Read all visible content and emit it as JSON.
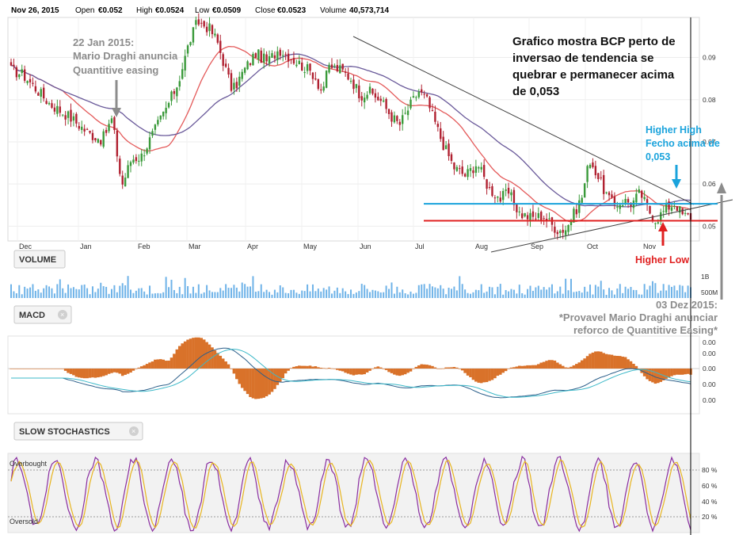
{
  "header": {
    "date": "Nov 26, 2015",
    "open_label": "Open",
    "open_value": "€0.052",
    "high_label": "High",
    "high_value": "€0.0524",
    "low_label": "Low",
    "low_value": "€0.0509",
    "close_label": "Close",
    "close_value": "€0.0523",
    "volume_label": "Volume",
    "volume_value": "40,573,714"
  },
  "panels": {
    "volume_title": "VOLUME",
    "macd_title": "MACD",
    "stoch_title": "SLOW STOCHASTICS",
    "close_icon": "close-circle-icon"
  },
  "annotations": {
    "draghi_jan": [
      "22 Jan 2015:",
      "Mario Draghi anuncia",
      "Quantitive easing"
    ],
    "main_note": [
      "Grafico mostra BCP perto de",
      "inversao de tendencia se",
      "quebrar e permanecer acima",
      "de 0,053"
    ],
    "higher_high": [
      "Higher High",
      "Fecho acima de",
      "0,053"
    ],
    "higher_low": "Higher Low",
    "dec_note": [
      "03 Dez 2015:",
      "*Provavel Mario Draghi anunciar",
      "reforco de Quantitive Easing*"
    ],
    "colors": {
      "gray": "#8c8c8c",
      "black": "#111111",
      "blue": "#1aa3dc",
      "red": "#e02020"
    }
  },
  "chart_data": {
    "type": "candlestick",
    "x_months": [
      "Dec",
      "Jan",
      "Feb",
      "Mar",
      "Apr",
      "May",
      "Jun",
      "Jul",
      "Aug",
      "Sep",
      "Oct",
      "Nov"
    ],
    "price_ticks": [
      "0.09",
      "0.08",
      "0.07",
      "0.06",
      "0.05"
    ],
    "price_ylim": [
      0.0465,
      0.0995
    ],
    "close_anchors": [
      [
        0,
        0.087
      ],
      [
        6,
        0.086
      ],
      [
        12,
        0.083
      ],
      [
        20,
        0.079
      ],
      [
        30,
        0.076
      ],
      [
        40,
        0.072
      ],
      [
        47,
        0.0705
      ],
      [
        52,
        0.0755
      ],
      [
        57,
        0.0595
      ],
      [
        62,
        0.066
      ],
      [
        67,
        0.0665
      ],
      [
        72,
        0.071
      ],
      [
        80,
        0.078
      ],
      [
        86,
        0.084
      ],
      [
        92,
        0.094
      ],
      [
        96,
        0.0985
      ],
      [
        102,
        0.097
      ],
      [
        106,
        0.094
      ],
      [
        110,
        0.088
      ],
      [
        114,
        0.082
      ],
      [
        120,
        0.087
      ],
      [
        126,
        0.091
      ],
      [
        132,
        0.089
      ],
      [
        138,
        0.092
      ],
      [
        144,
        0.09
      ],
      [
        150,
        0.088
      ],
      [
        156,
        0.086
      ],
      [
        160,
        0.082
      ],
      [
        164,
        0.088
      ],
      [
        170,
        0.087
      ],
      [
        175,
        0.085
      ],
      [
        180,
        0.081
      ],
      [
        184,
        0.082
      ],
      [
        190,
        0.08
      ],
      [
        196,
        0.076
      ],
      [
        200,
        0.074
      ],
      [
        206,
        0.079
      ],
      [
        210,
        0.082
      ],
      [
        214,
        0.08
      ],
      [
        218,
        0.075
      ],
      [
        222,
        0.07
      ],
      [
        228,
        0.064
      ],
      [
        234,
        0.062
      ],
      [
        240,
        0.065
      ],
      [
        246,
        0.059
      ],
      [
        252,
        0.0565
      ],
      [
        256,
        0.058
      ],
      [
        262,
        0.053
      ],
      [
        268,
        0.052
      ],
      [
        274,
        0.0525
      ],
      [
        278,
        0.0505
      ],
      [
        282,
        0.049
      ],
      [
        286,
        0.0495
      ],
      [
        290,
        0.053
      ],
      [
        294,
        0.057
      ],
      [
        298,
        0.066
      ],
      [
        302,
        0.062
      ],
      [
        306,
        0.058
      ],
      [
        310,
        0.055
      ],
      [
        316,
        0.056
      ],
      [
        320,
        0.0555
      ],
      [
        324,
        0.058
      ],
      [
        328,
        0.054
      ],
      [
        332,
        0.0515
      ],
      [
        338,
        0.0545
      ],
      [
        342,
        0.0555
      ],
      [
        346,
        0.0525
      ],
      [
        350,
        0.0523
      ]
    ],
    "horizontal_levels": [
      {
        "value": 0.0553,
        "color": "#1aa3dc"
      },
      {
        "value": 0.0513,
        "color": "#e02020"
      }
    ],
    "volume_ticks": [
      "1B",
      "500M"
    ],
    "macd_ticks": [
      "0.00",
      "0.00",
      "0.00",
      "0.00",
      "0.00"
    ],
    "stoch_ticks": [
      "80 %",
      "60 %",
      "40 %",
      "20 %"
    ],
    "stoch_labels": {
      "overbought": "Overbought",
      "oversold": "Oversold"
    }
  }
}
